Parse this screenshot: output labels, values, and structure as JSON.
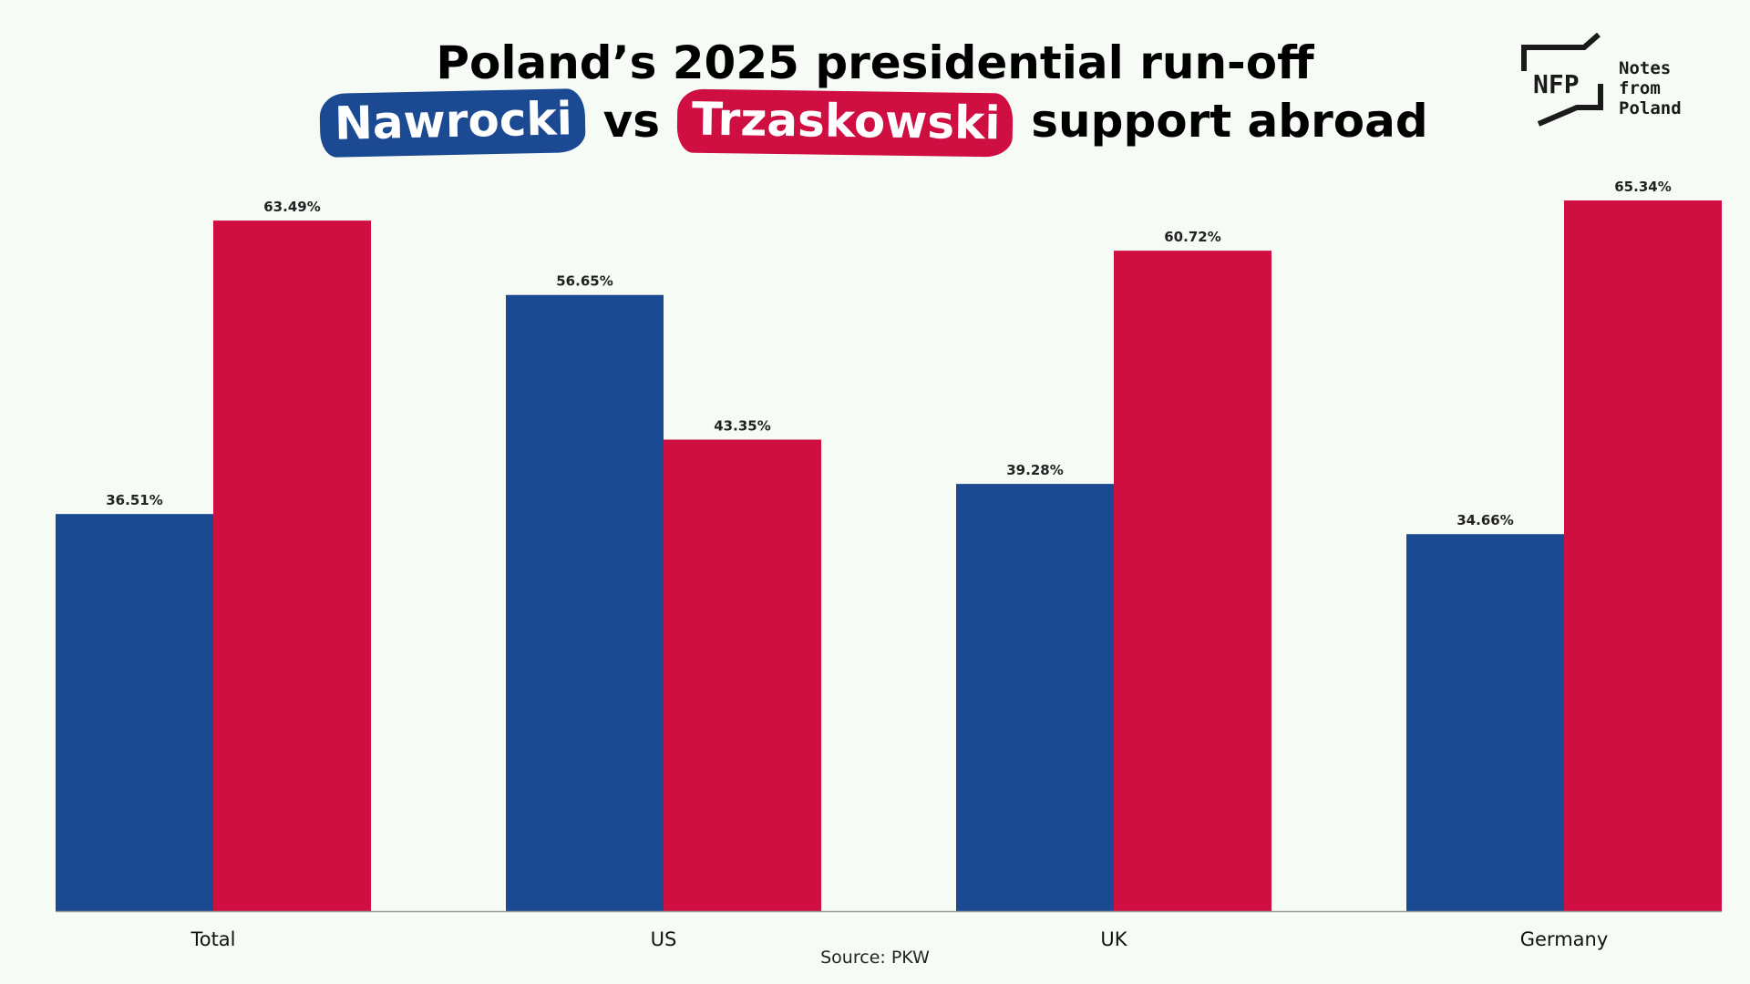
{
  "title": {
    "line1": "Poland’s 2025 presidential run-off",
    "line2_series_a": "Nawrocki",
    "line2_vs": "vs",
    "line2_series_b": "Trzaskowski",
    "line2_rest": "support abroad"
  },
  "source": "Source: PKW",
  "logo": {
    "mark_text": "NFP",
    "line1": "Notes from",
    "line2": "Poland"
  },
  "colors": {
    "background": "#f6fcf5",
    "nawrocki": "#1b4a93",
    "trzaskowski": "#cf0e42",
    "axis": "#9a9a9a"
  },
  "chart_data": {
    "type": "bar",
    "categories": [
      "Total",
      "US",
      "UK",
      "Germany"
    ],
    "series": [
      {
        "name": "Nawrocki",
        "values": [
          36.51,
          56.65,
          39.28,
          34.66
        ],
        "labels": [
          "36.51%",
          "56.65%",
          "39.28%",
          "34.66%"
        ]
      },
      {
        "name": "Trzaskowski",
        "values": [
          63.49,
          43.35,
          60.72,
          65.34
        ],
        "labels": [
          "63.49%",
          "43.35%",
          "60.72%",
          "65.34%"
        ]
      }
    ],
    "ylim": [
      0,
      65.34
    ],
    "grid": false,
    "legend": "none (series named in title)",
    "xlabel": "",
    "ylabel": ""
  }
}
